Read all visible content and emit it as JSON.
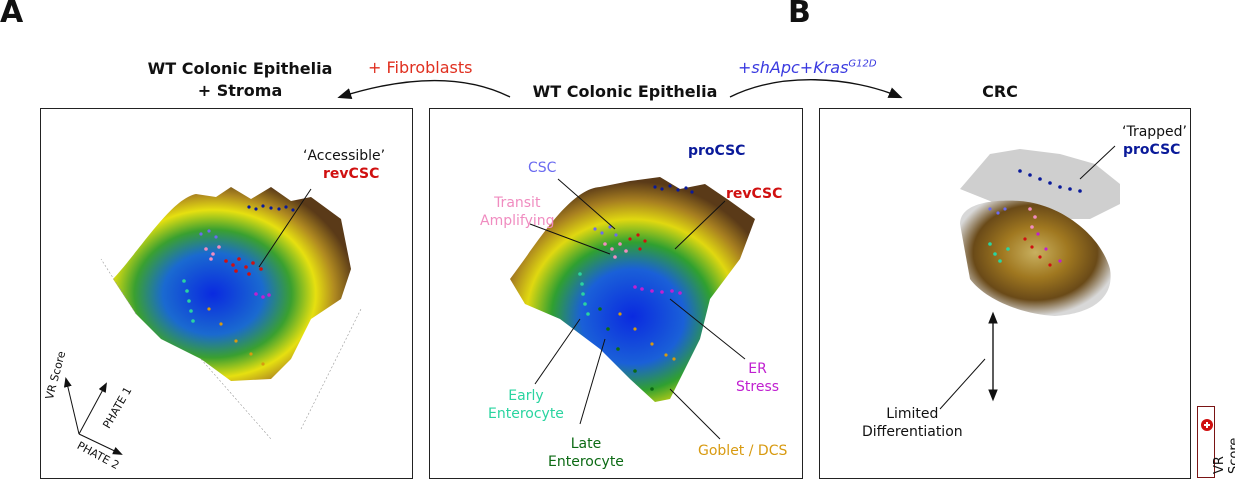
{
  "panels": {
    "a_letter": "A",
    "b_letter": "B"
  },
  "titles": {
    "left_line1": "WT Colonic Epithelia",
    "left_line2": "+ Stroma",
    "middle": "WT Colonic Epithelia",
    "right": "CRC"
  },
  "arrows": {
    "left_label": "+ Fibroblasts",
    "right_label_main": "+shApc+Kras",
    "right_label_sup": "G12D"
  },
  "left_panel": {
    "accessible": "‘Accessible’",
    "revcsc": "revCSC",
    "axis_vr": "VR Score",
    "axis_phate1": "PHATE 1",
    "axis_phate2": "PHATE 2"
  },
  "middle_panel": {
    "csc": "CSC",
    "procsc": "proCSC",
    "transit_1": "Transit",
    "transit_2": "Amplifying",
    "revcsc": "revCSC",
    "er_1": "ER",
    "er_2": "Stress",
    "early_1": "Early",
    "early_2": "Enterocyte",
    "late_1": "Late",
    "late_2": "Enterocyte",
    "goblet": "Goblet / DCS"
  },
  "right_panel": {
    "trapped": "‘Trapped’",
    "procsc": "proCSC",
    "limited_1": "Limited",
    "limited_2": "Differentiation"
  },
  "legend": {
    "label": "VR Score"
  },
  "colors": {
    "csc": "#6b6bf0",
    "procsc": "#0a1a9a",
    "revcsc": "#d01010",
    "transit": "#f08cc0",
    "er_stress": "#c020d0",
    "early": "#2ad4a0",
    "late": "#0c6a14",
    "goblet": "#d89a10",
    "fibroblasts": "#e03020",
    "kras": "#3a3ae0"
  }
}
